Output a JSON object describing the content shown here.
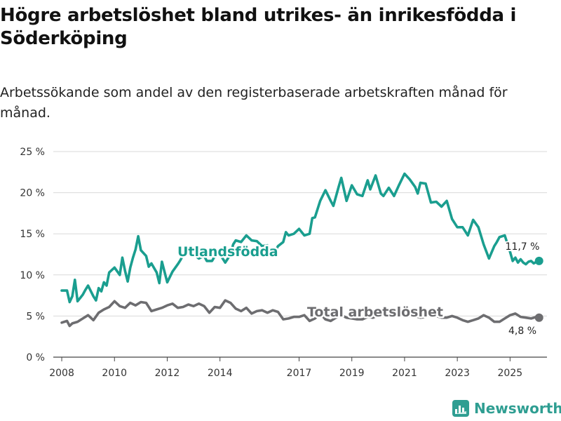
{
  "title": "Högre arbetslöshet bland utrikes- än inrikesfödda i Söderköping",
  "subtitle": "Arbetssökande som andel av den registerbaserade arbetskraften månad för månad.",
  "brand": "Newsworthy",
  "colors": {
    "foreign": "#1a9e8f",
    "total": "#6d6d70",
    "grid": "#d9d9d9",
    "axis": "#444444"
  },
  "chart_data": {
    "type": "line",
    "title": "Högre arbetslöshet bland utrikes- än inrikesfödda i Söderköping",
    "ylim": [
      0,
      25
    ],
    "xlim": [
      2007.6,
      2026.4
    ],
    "y_ticks": [
      0,
      5,
      10,
      15,
      20,
      25
    ],
    "y_tick_labels": [
      "0 %",
      "5 %",
      "10 %",
      "15 %",
      "20 %",
      "25 %"
    ],
    "x_ticks": [
      2008,
      2010,
      2012,
      2014,
      2017,
      2019,
      2021,
      2023,
      2025
    ],
    "x_tick_labels": [
      "2008",
      "2010",
      "2012",
      "2014",
      "2017",
      "2019",
      "2021",
      "2023",
      "2025"
    ],
    "grid": "horizontal",
    "series": [
      {
        "name": "Utlandsfödda",
        "label": "Utlandsfödda",
        "end_label": "11,7 %",
        "x": [
          2008.0,
          2008.2,
          2008.3,
          2008.4,
          2008.5,
          2008.6,
          2008.7,
          2008.8,
          2008.9,
          2009.0,
          2009.2,
          2009.3,
          2009.4,
          2009.5,
          2009.6,
          2009.7,
          2009.8,
          2010.0,
          2010.2,
          2010.3,
          2010.4,
          2010.5,
          2010.6,
          2010.7,
          2010.8,
          2010.9,
          2011.0,
          2011.2,
          2011.3,
          2011.4,
          2011.6,
          2011.7,
          2011.8,
          2012.0,
          2012.2,
          2012.4,
          2012.5,
          2012.6,
          2012.8,
          2013.0,
          2013.2,
          2013.4,
          2013.5,
          2013.7,
          2013.9,
          2014.0,
          2014.2,
          2014.3,
          2014.4,
          2014.5,
          2014.6,
          2014.8,
          2015.0,
          2015.2,
          2015.4,
          2015.6,
          2015.8,
          2016.0,
          2016.2,
          2016.4,
          2016.5,
          2016.6,
          2016.8,
          2017.0,
          2017.2,
          2017.4,
          2017.5,
          2017.6,
          2017.8,
          2018.0,
          2018.2,
          2018.3,
          2018.5,
          2018.6,
          2018.8,
          2019.0,
          2019.2,
          2019.4,
          2019.6,
          2019.7,
          2019.9,
          2020.1,
          2020.2,
          2020.4,
          2020.6,
          2020.8,
          2021.0,
          2021.2,
          2021.4,
          2021.5,
          2021.6,
          2021.8,
          2022.0,
          2022.2,
          2022.4,
          2022.6,
          2022.8,
          2023.0,
          2023.2,
          2023.4,
          2023.6,
          2023.8,
          2024.0,
          2024.2,
          2024.4,
          2024.5,
          2024.6,
          2024.8,
          2025.0,
          2025.1,
          2025.2,
          2025.3,
          2025.4,
          2025.5,
          2025.6,
          2025.7,
          2025.8,
          2025.9,
          2026.0,
          2026.1
        ],
        "values": [
          8.1,
          8.1,
          6.7,
          7.4,
          9.4,
          6.8,
          7.2,
          7.6,
          8.2,
          8.7,
          7.4,
          6.9,
          8.4,
          8.0,
          9.1,
          8.7,
          10.3,
          10.9,
          10.0,
          12.1,
          10.5,
          9.2,
          10.9,
          12.1,
          13.1,
          14.7,
          13.0,
          12.3,
          11.0,
          11.4,
          10.3,
          9.0,
          11.6,
          9.1,
          10.4,
          11.3,
          11.8,
          12.4,
          13.1,
          12.5,
          12.0,
          12.3,
          11.7,
          11.7,
          12.8,
          12.5,
          11.5,
          12.0,
          12.5,
          13.7,
          14.2,
          14.0,
          14.8,
          14.2,
          14.1,
          13.5,
          13.6,
          12.3,
          13.5,
          14.0,
          15.2,
          14.8,
          15.0,
          15.6,
          14.8,
          15.0,
          16.9,
          17.0,
          19.0,
          20.3,
          19.0,
          18.4,
          20.7,
          21.8,
          19.0,
          20.9,
          19.8,
          19.6,
          21.5,
          20.4,
          22.1,
          19.9,
          19.6,
          20.6,
          19.6,
          21.0,
          22.3,
          21.6,
          20.7,
          19.9,
          21.2,
          21.1,
          18.8,
          18.9,
          18.3,
          19.0,
          16.8,
          15.8,
          15.8,
          14.8,
          16.7,
          15.8,
          13.7,
          12.0,
          13.5,
          14.0,
          14.6,
          14.8,
          12.8,
          11.7,
          12.1,
          11.5,
          11.9,
          11.5,
          11.3,
          11.6,
          11.7,
          11.4,
          11.6,
          11.7
        ]
      },
      {
        "name": "Total arbetslöshet",
        "label": "Total arbetslöshet",
        "end_label": "4,8 %",
        "x": [
          2008.0,
          2008.2,
          2008.3,
          2008.4,
          2008.6,
          2008.8,
          2009.0,
          2009.2,
          2009.4,
          2009.6,
          2009.8,
          2010.0,
          2010.2,
          2010.4,
          2010.6,
          2010.8,
          2011.0,
          2011.2,
          2011.4,
          2011.6,
          2011.8,
          2012.0,
          2012.2,
          2012.4,
          2012.6,
          2012.8,
          2013.0,
          2013.2,
          2013.4,
          2013.6,
          2013.8,
          2014.0,
          2014.2,
          2014.4,
          2014.6,
          2014.8,
          2015.0,
          2015.2,
          2015.4,
          2015.6,
          2015.8,
          2016.0,
          2016.2,
          2016.4,
          2016.6,
          2016.8,
          2017.0,
          2017.2,
          2017.4,
          2017.6,
          2017.8,
          2018.0,
          2018.2,
          2018.4,
          2018.6,
          2018.8,
          2019.0,
          2019.2,
          2019.4,
          2019.6,
          2019.8,
          2020.0,
          2020.2,
          2020.4,
          2020.6,
          2020.8,
          2021.0,
          2021.2,
          2021.4,
          2021.6,
          2021.8,
          2022.0,
          2022.2,
          2022.4,
          2022.6,
          2022.8,
          2023.0,
          2023.2,
          2023.4,
          2023.6,
          2023.8,
          2024.0,
          2024.2,
          2024.4,
          2024.6,
          2024.8,
          2025.0,
          2025.2,
          2025.4,
          2025.6,
          2025.8,
          2026.0,
          2026.1
        ],
        "values": [
          4.2,
          4.4,
          3.8,
          4.1,
          4.3,
          4.7,
          5.1,
          4.5,
          5.4,
          5.8,
          6.1,
          6.8,
          6.2,
          6.0,
          6.6,
          6.3,
          6.7,
          6.6,
          5.6,
          5.8,
          6.0,
          6.3,
          6.5,
          6.0,
          6.1,
          6.4,
          6.2,
          6.5,
          6.2,
          5.4,
          6.1,
          6.0,
          6.9,
          6.6,
          5.9,
          5.6,
          6.0,
          5.3,
          5.6,
          5.7,
          5.4,
          5.7,
          5.5,
          4.6,
          4.7,
          4.9,
          4.9,
          5.1,
          4.4,
          4.7,
          5.3,
          4.6,
          4.4,
          4.8,
          5.1,
          4.8,
          4.7,
          4.6,
          4.6,
          4.9,
          4.8,
          5.1,
          5.0,
          5.2,
          5.1,
          4.9,
          5.2,
          5.0,
          5.0,
          4.8,
          4.9,
          5.3,
          5.0,
          4.8,
          4.8,
          5.0,
          4.8,
          4.5,
          4.3,
          4.5,
          4.7,
          5.1,
          4.8,
          4.3,
          4.3,
          4.7,
          5.1,
          5.3,
          4.9,
          4.8,
          4.7,
          4.9,
          4.8
        ]
      }
    ]
  }
}
